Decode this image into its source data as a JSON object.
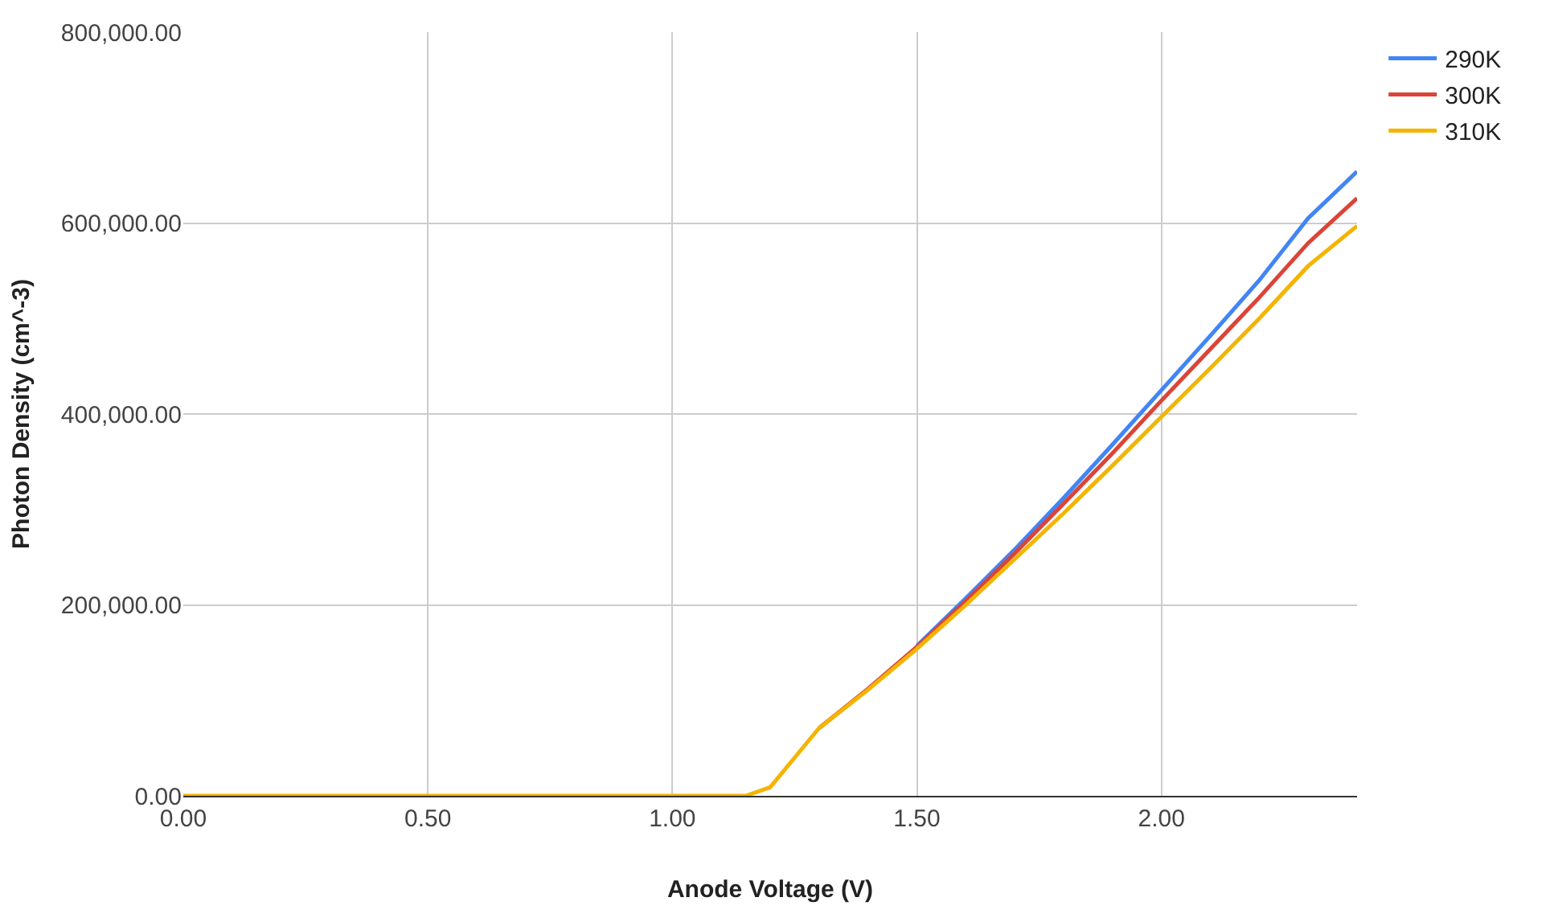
{
  "chart_data": {
    "type": "line",
    "xlabel": "Anode Voltage (V)",
    "ylabel": "Photon Density (cm^-3)",
    "x": [
      0,
      0.5,
      1.0,
      1.15,
      1.2,
      1.25,
      1.3,
      1.4,
      1.5,
      1.6,
      1.7,
      1.8,
      1.9,
      2.0,
      2.1,
      2.2,
      2.3,
      2.4
    ],
    "series": [
      {
        "name": "290K",
        "color": "#4285f4",
        "values": [
          null,
          null,
          null,
          null,
          null,
          null,
          null,
          null,
          157000,
          207000,
          258000,
          312000,
          368000,
          425000,
          482000,
          540000,
          605000,
          654000
        ]
      },
      {
        "name": "300K",
        "color": "#db4437",
        "values": [
          null,
          null,
          null,
          null,
          null,
          null,
          71000,
          112000,
          156000,
          204000,
          254000,
          306000,
          359000,
          414000,
          468000,
          522000,
          579000,
          626000
        ]
      },
      {
        "name": "310K",
        "color": "#f4b400",
        "values": [
          0,
          0,
          0,
          0,
          9000,
          40000,
          71000,
          111000,
          154000,
          200000,
          248000,
          296000,
          346000,
          397000,
          448000,
          500000,
          555000,
          597000
        ]
      }
    ],
    "xlim": [
      0,
      2.4
    ],
    "xticks": [
      {
        "value": 0,
        "label": "0.00"
      },
      {
        "value": 0.5,
        "label": "0.50"
      },
      {
        "value": 1,
        "label": "1.00"
      },
      {
        "value": 1.5,
        "label": "1.50"
      },
      {
        "value": 2,
        "label": "2.00"
      }
    ],
    "ylim": [
      0,
      800000
    ],
    "yticks": [
      {
        "value": 0,
        "label": "0.00"
      },
      {
        "value": 200000,
        "label": "200,000.00"
      },
      {
        "value": 400000,
        "label": "400,000.00"
      },
      {
        "value": 600000,
        "label": "600,000.00"
      },
      {
        "value": 800000,
        "label": "800,000.00"
      }
    ],
    "grid": true,
    "legend": "top right",
    "marker": "none",
    "line_style": "solid"
  }
}
